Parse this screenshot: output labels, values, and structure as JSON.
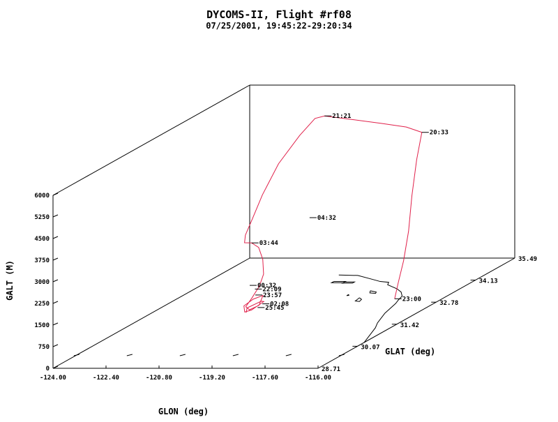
{
  "chart_data": {
    "type": "line",
    "projection": "3d-oblique",
    "title": "DYCOMS-II, Flight #rf08",
    "subtitle": "07/25/2001, 19:45:22-29:20:34",
    "xlabel": "GLON (deg)",
    "ylabel": "GLAT (deg)",
    "zlabel": "GALT (M)",
    "xlim": [
      -124.0,
      -116.0
    ],
    "ylim": [
      28.71,
      35.49
    ],
    "zlim": [
      0,
      6000
    ],
    "x_ticks": [
      "-124.00",
      "-122.40",
      "-120.80",
      "-119.20",
      "-117.60",
      "-116.00"
    ],
    "y_ticks": [
      "28.71",
      "30.07",
      "31.42",
      "32.78",
      "34.13",
      "35.49"
    ],
    "z_ticks": [
      "0",
      "750",
      "1500",
      "2250",
      "3000",
      "3750",
      "4500",
      "5250",
      "6000"
    ],
    "track_color": "#e0204a",
    "coast_color": "#000000",
    "series": [
      {
        "points": [
          [
            -117.2,
            32.72,
            150
          ],
          [
            -117.25,
            32.9,
            600
          ],
          [
            -117.35,
            33.2,
            1200
          ],
          [
            -117.55,
            33.6,
            2000
          ],
          [
            -117.8,
            34.0,
            3000
          ],
          [
            -118.05,
            34.45,
            4000
          ],
          [
            -118.2,
            34.8,
            4750
          ],
          [
            -118.8,
            34.95,
            4850
          ],
          [
            -119.6,
            35.0,
            4950
          ],
          [
            -120.5,
            35.05,
            5050
          ],
          [
            -121.4,
            35.1,
            5150
          ],
          [
            -121.6,
            35.0,
            5120
          ],
          [
            -121.8,
            34.7,
            4700
          ],
          [
            -122.0,
            34.2,
            4000
          ],
          [
            -122.05,
            33.7,
            3200
          ],
          [
            -122.0,
            33.3,
            2600
          ],
          [
            -121.95,
            33.0,
            2200
          ],
          [
            -121.8,
            32.8,
            2050
          ],
          [
            -121.5,
            32.7,
            2100
          ],
          [
            -121.2,
            32.6,
            2000
          ],
          [
            -120.9,
            32.4,
            1700
          ],
          [
            -120.7,
            32.2,
            1300
          ],
          [
            -120.65,
            32.0,
            1000
          ],
          [
            -120.7,
            31.8,
            700
          ],
          [
            -120.8,
            31.7,
            450
          ],
          [
            -120.6,
            31.6,
            400
          ],
          [
            -120.4,
            31.7,
            500
          ],
          [
            -120.5,
            31.95,
            700
          ],
          [
            -120.75,
            31.9,
            600
          ],
          [
            -120.9,
            31.75,
            450
          ],
          [
            -120.7,
            31.55,
            350
          ],
          [
            -120.45,
            31.5,
            450
          ],
          [
            -120.3,
            31.75,
            600
          ],
          [
            -120.55,
            31.95,
            500
          ],
          [
            -120.85,
            31.8,
            350
          ],
          [
            -120.7,
            31.6,
            300
          ]
        ]
      }
    ],
    "time_labels": [
      {
        "text": "21:21",
        "point": [
          -121.4,
          35.1,
          5150
        ]
      },
      {
        "text": "20:33",
        "point": [
          -118.2,
          34.8,
          4750
        ]
      },
      {
        "text": "04:32",
        "point": [
          -120.1,
          33.1,
          2750
        ]
      },
      {
        "text": "03:44",
        "point": [
          -121.5,
          32.7,
          2100
        ]
      },
      {
        "text": "00:32",
        "point": [
          -120.9,
          31.95,
          1050
        ]
      },
      {
        "text": "22:09",
        "point": [
          -120.7,
          31.9,
          950
        ]
      },
      {
        "text": "23:57",
        "point": [
          -120.6,
          31.8,
          800
        ]
      },
      {
        "text": "02:08",
        "point": [
          -120.3,
          31.7,
          550
        ]
      },
      {
        "text": "25:45",
        "point": [
          -120.4,
          31.65,
          450
        ]
      },
      {
        "text": "23:00",
        "point": [
          -117.2,
          32.72,
          150
        ]
      }
    ],
    "coastline": [
      [
        -120.4,
        34.45
      ],
      [
        -119.8,
        34.42
      ],
      [
        -119.2,
        34.2
      ],
      [
        -118.8,
        34.05
      ],
      [
        -118.5,
        34.0
      ],
      [
        -118.4,
        33.85
      ],
      [
        -118.2,
        33.75
      ],
      [
        -117.9,
        33.6
      ],
      [
        -117.6,
        33.4
      ],
      [
        -117.35,
        33.15
      ],
      [
        -117.25,
        32.9
      ],
      [
        -117.15,
        32.7
      ],
      [
        -117.05,
        32.4
      ],
      [
        -116.95,
        32.1
      ],
      [
        -116.8,
        31.8
      ],
      [
        -116.65,
        31.5
      ],
      [
        -116.45,
        31.2
      ],
      [
        -116.3,
        30.9
      ],
      [
        -116.15,
        30.6
      ],
      [
        -116.0,
        30.3
      ]
    ],
    "islands": [
      [
        [
          -120.2,
          34.05
        ],
        [
          -119.85,
          34.05
        ],
        [
          -119.85,
          33.97
        ],
        [
          -120.2,
          33.97
        ],
        [
          -120.2,
          34.05
        ]
      ],
      [
        [
          -119.85,
          34.02
        ],
        [
          -119.55,
          34.02
        ],
        [
          -119.55,
          33.95
        ],
        [
          -119.85,
          33.95
        ],
        [
          -119.85,
          34.02
        ]
      ],
      [
        [
          -118.6,
          33.48
        ],
        [
          -118.35,
          33.4
        ],
        [
          -118.3,
          33.32
        ],
        [
          -118.5,
          33.35
        ],
        [
          -118.6,
          33.48
        ]
      ],
      [
        [
          -118.55,
          33.05
        ],
        [
          -118.4,
          32.95
        ],
        [
          -118.35,
          32.82
        ],
        [
          -118.5,
          32.85
        ],
        [
          -118.55,
          33.05
        ]
      ],
      [
        [
          -119.05,
          33.25
        ],
        [
          -119.0,
          33.2
        ],
        [
          -119.05,
          33.18
        ],
        [
          -119.05,
          33.25
        ]
      ]
    ]
  }
}
